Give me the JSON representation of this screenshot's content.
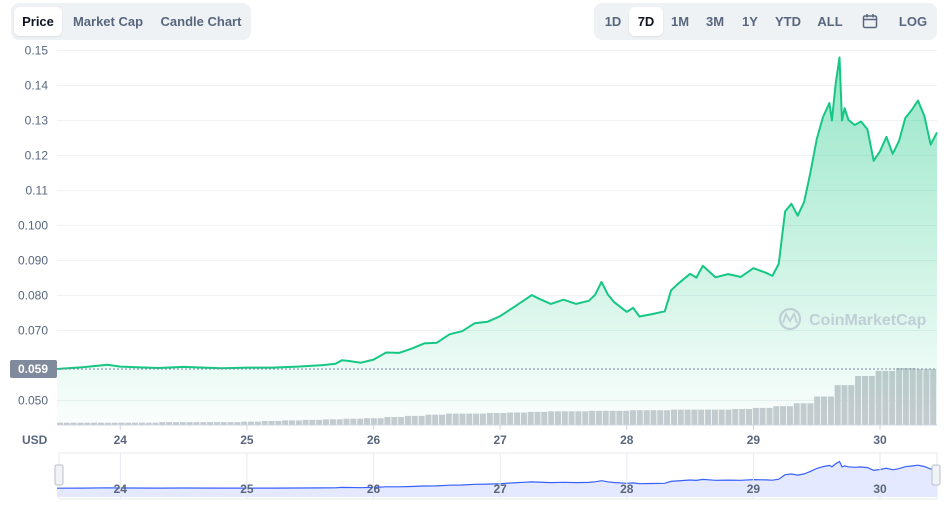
{
  "tabs": {
    "left": [
      {
        "label": "Price",
        "active": true
      },
      {
        "label": "Market Cap",
        "active": false
      },
      {
        "label": "Candle Chart",
        "active": false
      }
    ],
    "ranges": [
      {
        "label": "1D",
        "active": false
      },
      {
        "label": "7D",
        "active": true
      },
      {
        "label": "1M",
        "active": false
      },
      {
        "label": "3M",
        "active": false
      },
      {
        "label": "1Y",
        "active": false
      },
      {
        "label": "YTD",
        "active": false
      },
      {
        "label": "ALL",
        "active": false
      },
      {
        "icon": "calendar-icon"
      },
      {
        "label": "LOG",
        "active": false
      }
    ]
  },
  "watermark": "CoinMarketCap",
  "currency_label": "USD",
  "current_price": "0.059",
  "colors": {
    "line": "#16c784",
    "fill": "#16c784",
    "volume": "#c8cbd1",
    "navigator_line": "#3861fb",
    "navigator_fill": "#e4e9ff",
    "price_badge": "#808a9d"
  },
  "chart_data": {
    "type": "area",
    "x_ticks": [
      "24",
      "25",
      "26",
      "27",
      "28",
      "29",
      "30"
    ],
    "y_ticks": [
      "0.050",
      "0.059",
      "0.070",
      "0.080",
      "0.090",
      "0.100",
      "0.11",
      "0.12",
      "0.13",
      "0.14",
      "0.15"
    ],
    "y_range": [
      0.043,
      0.153
    ],
    "x_range": [
      23.5,
      30.45
    ],
    "grid": true,
    "series": [
      {
        "x": [
          23.5,
          23.7,
          23.9,
          24.0,
          24.3,
          24.5,
          24.8,
          25.0,
          25.2,
          25.4,
          25.6,
          25.7,
          25.75,
          25.8,
          25.9,
          26.0,
          26.1,
          26.2,
          26.3,
          26.4,
          26.5,
          26.6,
          26.7,
          26.8,
          26.9,
          27.0,
          27.1,
          27.2,
          27.25,
          27.3,
          27.4,
          27.5,
          27.6,
          27.7,
          27.75,
          27.8,
          27.85,
          27.9,
          28.0,
          28.05,
          28.1,
          28.2,
          28.3,
          28.35,
          28.4,
          28.5,
          28.55,
          28.6,
          28.7,
          28.8,
          28.9,
          29.0,
          29.1,
          29.15,
          29.2,
          29.25,
          29.3,
          29.35,
          29.4,
          29.45,
          29.5,
          29.55,
          29.6,
          29.62,
          29.65,
          29.68,
          29.7,
          29.72,
          29.75,
          29.8,
          29.85,
          29.9,
          29.95,
          30.0,
          30.05,
          30.1,
          30.15,
          30.2,
          30.25,
          30.3,
          30.35,
          30.4,
          30.45
        ],
        "y": [
          0.059,
          0.0595,
          0.0602,
          0.0597,
          0.0593,
          0.0596,
          0.0592,
          0.0594,
          0.0594,
          0.0597,
          0.0601,
          0.0605,
          0.0615,
          0.0613,
          0.0608,
          0.0617,
          0.0637,
          0.0636,
          0.0648,
          0.0663,
          0.0665,
          0.0689,
          0.0698,
          0.0721,
          0.0725,
          0.0741,
          0.0765,
          0.0789,
          0.0801,
          0.0792,
          0.0776,
          0.0788,
          0.0776,
          0.0785,
          0.0802,
          0.0839,
          0.0803,
          0.0781,
          0.0753,
          0.0765,
          0.074,
          0.0747,
          0.0755,
          0.0815,
          0.0832,
          0.0862,
          0.0851,
          0.0885,
          0.0852,
          0.0861,
          0.0853,
          0.0878,
          0.0865,
          0.0856,
          0.089,
          0.104,
          0.1062,
          0.1028,
          0.1067,
          0.1151,
          0.1246,
          0.131,
          0.135,
          0.13,
          0.1405,
          0.148,
          0.13,
          0.1335,
          0.1302,
          0.1287,
          0.1297,
          0.1275,
          0.1185,
          0.1212,
          0.1253,
          0.1205,
          0.1241,
          0.1307,
          0.133,
          0.1357,
          0.1313,
          0.1231,
          0.1266
        ]
      }
    ],
    "volume_relative": [
      0.04,
      0.04,
      0.04,
      0.04,
      0.04,
      0.05,
      0.05,
      0.05,
      0.05,
      0.06,
      0.07,
      0.08,
      0.09,
      0.1,
      0.11,
      0.12,
      0.14,
      0.16,
      0.18,
      0.2,
      0.2,
      0.21,
      0.22,
      0.23,
      0.24,
      0.24,
      0.25,
      0.25,
      0.26,
      0.26,
      0.27,
      0.27,
      0.27,
      0.28,
      0.3,
      0.33,
      0.38,
      0.5,
      0.7,
      0.86,
      0.95,
      1.0,
      0.98
    ],
    "navigator": {
      "x_ticks": [
        "24",
        "25",
        "26",
        "27",
        "28",
        "29",
        "30"
      ]
    }
  }
}
